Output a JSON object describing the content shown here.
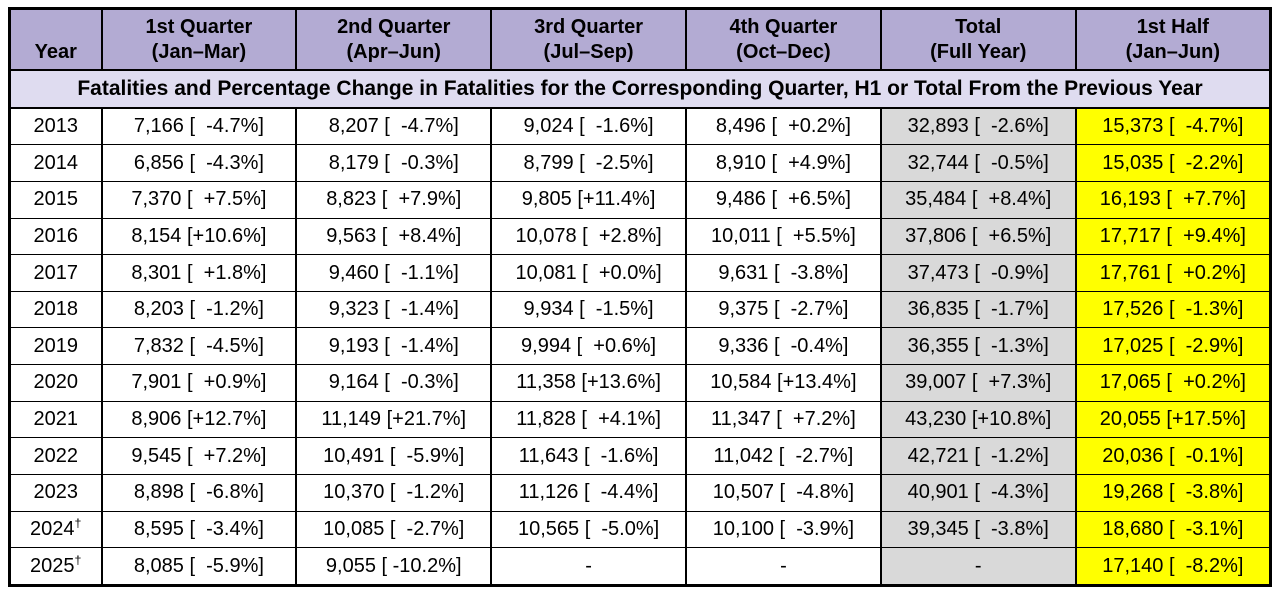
{
  "table": {
    "columns": [
      {
        "id": "year",
        "line1": "",
        "line2": "Year"
      },
      {
        "id": "q1",
        "line1": "1st Quarter",
        "line2": "(Jan–Mar)"
      },
      {
        "id": "q2",
        "line1": "2nd Quarter",
        "line2": "(Apr–Jun)"
      },
      {
        "id": "q3",
        "line1": "3rd Quarter",
        "line2": "(Jul–Sep)"
      },
      {
        "id": "q4",
        "line1": "4th Quarter",
        "line2": "(Oct–Dec)"
      },
      {
        "id": "total",
        "line1": "Total",
        "line2": "(Full Year)"
      },
      {
        "id": "h1",
        "line1": "1st Half",
        "line2": "(Jan–Jun)"
      }
    ],
    "subtitle": "Fatalities and Percentage Change in Fatalities for the Corresponding Quarter, H1 or Total From the Previous Year",
    "colors": {
      "header_bg": "#b3abd3",
      "subtitle_bg": "#dfdcf0",
      "total_column_bg": "#d9d9d9",
      "first_half_column_bg": "#ffff00",
      "border": "#000000"
    }
  },
  "chart_data": {
    "type": "table",
    "title": "Fatalities and Percentage Change in Fatalities for the Corresponding Quarter, H1 or Total From the Previous Year",
    "columns": [
      "Year",
      "1st Quarter (Jan–Mar)",
      "2nd Quarter (Apr–Jun)",
      "3rd Quarter (Jul–Sep)",
      "4th Quarter (Oct–Dec)",
      "Total (Full Year)",
      "1st Half (Jan–Jun)"
    ],
    "rows": [
      {
        "year": "2013",
        "sup": "",
        "cells": [
          "7,166 [  -4.7%]",
          "8,207 [  -4.7%]",
          "9,024 [  -1.6%]",
          "8,496 [  +0.2%]",
          "32,893 [  -2.6%]",
          "15,373 [  -4.7%]"
        ]
      },
      {
        "year": "2014",
        "sup": "",
        "cells": [
          "6,856 [  -4.3%]",
          "8,179 [  -0.3%]",
          "8,799 [  -2.5%]",
          "8,910 [  +4.9%]",
          "32,744 [  -0.5%]",
          "15,035 [  -2.2%]"
        ]
      },
      {
        "year": "2015",
        "sup": "",
        "cells": [
          "7,370 [  +7.5%]",
          "8,823 [  +7.9%]",
          "9,805 [+11.4%]",
          "9,486 [  +6.5%]",
          "35,484 [  +8.4%]",
          "16,193 [  +7.7%]"
        ]
      },
      {
        "year": "2016",
        "sup": "",
        "cells": [
          "8,154 [+10.6%]",
          "9,563 [  +8.4%]",
          "10,078 [  +2.8%]",
          "10,011 [  +5.5%]",
          "37,806 [  +6.5%]",
          "17,717 [  +9.4%]"
        ]
      },
      {
        "year": "2017",
        "sup": "",
        "cells": [
          "8,301 [  +1.8%]",
          "9,460 [  -1.1%]",
          "10,081 [  +0.0%]",
          "9,631 [  -3.8%]",
          "37,473 [  -0.9%]",
          "17,761 [  +0.2%]"
        ]
      },
      {
        "year": "2018",
        "sup": "",
        "cells": [
          "8,203 [  -1.2%]",
          "9,323 [  -1.4%]",
          "9,934 [  -1.5%]",
          "9,375 [  -2.7%]",
          "36,835 [  -1.7%]",
          "17,526 [  -1.3%]"
        ]
      },
      {
        "year": "2019",
        "sup": "",
        "cells": [
          "7,832 [  -4.5%]",
          "9,193 [  -1.4%]",
          "9,994 [  +0.6%]",
          "9,336 [  -0.4%]",
          "36,355 [  -1.3%]",
          "17,025 [  -2.9%]"
        ]
      },
      {
        "year": "2020",
        "sup": "",
        "cells": [
          "7,901 [  +0.9%]",
          "9,164 [  -0.3%]",
          "11,358 [+13.6%]",
          "10,584 [+13.4%]",
          "39,007 [  +7.3%]",
          "17,065 [  +0.2%]"
        ]
      },
      {
        "year": "2021",
        "sup": "",
        "cells": [
          "8,906 [+12.7%]",
          "11,149 [+21.7%]",
          "11,828 [  +4.1%]",
          "11,347 [  +7.2%]",
          "43,230 [+10.8%]",
          "20,055 [+17.5%]"
        ]
      },
      {
        "year": "2022",
        "sup": "",
        "cells": [
          "9,545 [  +7.2%]",
          "10,491 [  -5.9%]",
          "11,643 [  -1.6%]",
          "11,042 [  -2.7%]",
          "42,721 [  -1.2%]",
          "20,036 [  -0.1%]"
        ]
      },
      {
        "year": "2023",
        "sup": "",
        "cells": [
          "8,898 [  -6.8%]",
          "10,370 [  -1.2%]",
          "11,126 [  -4.4%]",
          "10,507 [  -4.8%]",
          "40,901 [  -4.3%]",
          "19,268 [  -3.8%]"
        ]
      },
      {
        "year": "2024",
        "sup": "†",
        "cells": [
          "8,595 [  -3.4%]",
          "10,085 [  -2.7%]",
          "10,565 [  -5.0%]",
          "10,100 [  -3.9%]",
          "39,345 [  -3.8%]",
          "18,680 [  -3.1%]"
        ]
      },
      {
        "year": "2025",
        "sup": "†",
        "cells": [
          "8,085 [  -5.9%]",
          "9,055 [ -10.2%]",
          "-",
          "-",
          "-",
          "17,140 [  -8.2%]"
        ]
      }
    ]
  }
}
